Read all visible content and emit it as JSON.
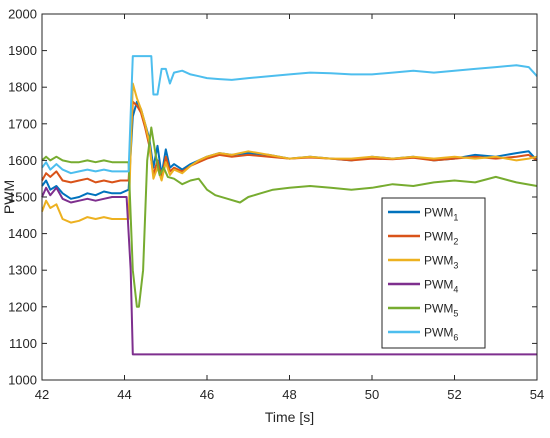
{
  "chart_data": {
    "type": "line",
    "title": "",
    "xlabel": "Time [s]",
    "ylabel": "PWM",
    "xlim": [
      42,
      54
    ],
    "ylim": [
      1000,
      2000
    ],
    "xticks": [
      "42",
      "44",
      "46",
      "48",
      "50",
      "52",
      "54"
    ],
    "yticks": [
      "1000",
      "1100",
      "1200",
      "1300",
      "1400",
      "1500",
      "1600",
      "1700",
      "1800",
      "1900",
      "2000"
    ],
    "grid": false,
    "legend_position": "right",
    "series": [
      {
        "name": "PWM",
        "sub": "1",
        "color": "#0072BD",
        "x": [
          42.0,
          42.1,
          42.2,
          42.35,
          42.5,
          42.7,
          42.9,
          43.1,
          43.3,
          43.5,
          43.7,
          43.9,
          44.1,
          44.2,
          44.3,
          44.4,
          44.5,
          44.6,
          44.7,
          44.8,
          44.9,
          45.0,
          45.1,
          45.2,
          45.4,
          45.6,
          45.8,
          46.0,
          46.3,
          46.6,
          47.0,
          47.5,
          48.0,
          48.5,
          49.0,
          49.5,
          50.0,
          50.5,
          51.0,
          51.5,
          52.0,
          52.5,
          53.0,
          53.5,
          53.8,
          54.0
        ],
        "values": [
          1530,
          1545,
          1520,
          1530,
          1510,
          1495,
          1500,
          1510,
          1505,
          1515,
          1510,
          1510,
          1520,
          1720,
          1760,
          1740,
          1700,
          1660,
          1580,
          1640,
          1560,
          1630,
          1580,
          1590,
          1575,
          1590,
          1600,
          1610,
          1620,
          1615,
          1620,
          1615,
          1605,
          1610,
          1605,
          1600,
          1610,
          1605,
          1610,
          1600,
          1605,
          1615,
          1610,
          1620,
          1625,
          1600
        ]
      },
      {
        "name": "PWM",
        "sub": "2",
        "color": "#D95319",
        "x": [
          42.0,
          42.1,
          42.2,
          42.35,
          42.5,
          42.7,
          42.9,
          43.1,
          43.3,
          43.5,
          43.7,
          43.9,
          44.1,
          44.2,
          44.3,
          44.4,
          44.5,
          44.6,
          44.7,
          44.8,
          44.9,
          45.0,
          45.1,
          45.2,
          45.4,
          45.6,
          45.8,
          46.0,
          46.3,
          46.6,
          47.0,
          47.5,
          48.0,
          48.5,
          49.0,
          49.5,
          50.0,
          50.5,
          51.0,
          51.5,
          52.0,
          52.5,
          53.0,
          53.5,
          53.8,
          54.0
        ],
        "values": [
          1545,
          1565,
          1555,
          1570,
          1545,
          1540,
          1545,
          1550,
          1540,
          1545,
          1540,
          1545,
          1545,
          1760,
          1750,
          1730,
          1690,
          1640,
          1560,
          1600,
          1550,
          1610,
          1570,
          1580,
          1570,
          1585,
          1595,
          1605,
          1615,
          1610,
          1615,
          1610,
          1605,
          1608,
          1605,
          1600,
          1605,
          1603,
          1607,
          1600,
          1605,
          1610,
          1605,
          1610,
          1615,
          1600
        ]
      },
      {
        "name": "PWM",
        "sub": "3",
        "color": "#EDB120",
        "x": [
          42.0,
          42.1,
          42.2,
          42.35,
          42.5,
          42.7,
          42.9,
          43.1,
          43.3,
          43.5,
          43.7,
          43.9,
          44.1,
          44.2,
          44.3,
          44.4,
          44.5,
          44.6,
          44.7,
          44.8,
          44.9,
          45.0,
          45.1,
          45.2,
          45.4,
          45.6,
          45.8,
          46.0,
          46.3,
          46.6,
          47.0,
          47.5,
          48.0,
          48.5,
          49.0,
          49.5,
          50.0,
          50.5,
          51.0,
          51.5,
          52.0,
          52.5,
          53.0,
          53.5,
          53.8,
          54.0
        ],
        "values": [
          1460,
          1490,
          1470,
          1480,
          1440,
          1430,
          1435,
          1445,
          1440,
          1445,
          1440,
          1440,
          1440,
          1810,
          1770,
          1740,
          1700,
          1650,
          1550,
          1580,
          1545,
          1595,
          1560,
          1575,
          1565,
          1585,
          1600,
          1610,
          1620,
          1615,
          1625,
          1615,
          1605,
          1610,
          1605,
          1605,
          1610,
          1605,
          1610,
          1605,
          1610,
          1605,
          1610,
          1600,
          1605,
          1610
        ]
      },
      {
        "name": "PWM",
        "sub": "4",
        "color": "#7E2F8E",
        "x": [
          42.0,
          42.1,
          42.2,
          42.35,
          42.5,
          42.7,
          42.9,
          43.1,
          43.3,
          43.5,
          43.7,
          43.9,
          44.05,
          44.15,
          44.2,
          46.0,
          48.0,
          50.0,
          52.0,
          54.0
        ],
        "values": [
          1500,
          1525,
          1505,
          1525,
          1495,
          1485,
          1490,
          1495,
          1490,
          1495,
          1500,
          1500,
          1500,
          1300,
          1070,
          1070,
          1070,
          1070,
          1070,
          1070
        ]
      },
      {
        "name": "PWM",
        "sub": "5",
        "color": "#77AC30",
        "x": [
          42.0,
          42.1,
          42.2,
          42.35,
          42.5,
          42.7,
          42.9,
          43.1,
          43.3,
          43.5,
          43.7,
          43.9,
          44.1,
          44.2,
          44.3,
          44.35,
          44.45,
          44.55,
          44.65,
          44.75,
          44.85,
          44.95,
          45.05,
          45.2,
          45.4,
          45.6,
          45.8,
          46.0,
          46.2,
          46.5,
          46.8,
          47.0,
          47.3,
          47.6,
          48.0,
          48.5,
          49.0,
          49.5,
          50.0,
          50.5,
          51.0,
          51.5,
          52.0,
          52.5,
          53.0,
          53.5,
          54.0
        ],
        "values": [
          1600,
          1610,
          1600,
          1610,
          1600,
          1595,
          1595,
          1600,
          1595,
          1600,
          1595,
          1595,
          1595,
          1300,
          1200,
          1200,
          1300,
          1600,
          1690,
          1620,
          1560,
          1580,
          1555,
          1550,
          1535,
          1545,
          1550,
          1520,
          1505,
          1495,
          1485,
          1500,
          1510,
          1520,
          1525,
          1530,
          1525,
          1520,
          1525,
          1535,
          1530,
          1540,
          1545,
          1540,
          1555,
          1540,
          1530
        ]
      },
      {
        "name": "PWM",
        "sub": "6",
        "color": "#4DBEEE",
        "x": [
          42.0,
          42.1,
          42.2,
          42.35,
          42.5,
          42.7,
          42.9,
          43.1,
          43.3,
          43.5,
          43.7,
          43.9,
          44.1,
          44.2,
          44.3,
          44.5,
          44.65,
          44.7,
          44.8,
          44.9,
          45.0,
          45.1,
          45.2,
          45.4,
          45.6,
          45.8,
          46.0,
          46.3,
          46.6,
          47.0,
          47.5,
          48.0,
          48.5,
          49.0,
          49.5,
          50.0,
          50.5,
          51.0,
          51.5,
          52.0,
          52.5,
          53.0,
          53.5,
          53.8,
          54.0
        ],
        "values": [
          1580,
          1595,
          1575,
          1590,
          1575,
          1565,
          1570,
          1575,
          1570,
          1575,
          1570,
          1570,
          1570,
          1885,
          1885,
          1885,
          1885,
          1780,
          1780,
          1850,
          1850,
          1810,
          1840,
          1845,
          1835,
          1830,
          1825,
          1822,
          1820,
          1825,
          1830,
          1835,
          1840,
          1838,
          1835,
          1835,
          1840,
          1845,
          1840,
          1845,
          1850,
          1855,
          1860,
          1855,
          1830
        ]
      }
    ]
  }
}
